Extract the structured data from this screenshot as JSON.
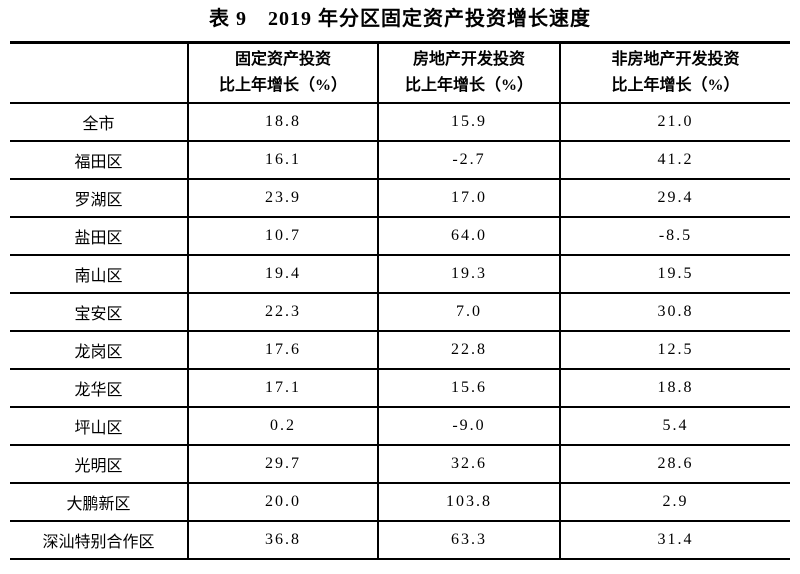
{
  "page": {
    "title": "表 9　2019 年分区固定资产投资增长速度"
  },
  "colors": {
    "background": "#ffffff",
    "text": "#000000",
    "border": "#000000"
  },
  "table": {
    "header": {
      "region": "",
      "fixed_asset_line1": "固定资产投资",
      "fixed_asset_line2": "比上年增长（%）",
      "real_estate_line1": "房地产开发投资",
      "real_estate_line2": "比上年增长（%）",
      "non_real_estate_line1": "非房地产开发投资",
      "non_real_estate_line2": "比上年增长（%）"
    },
    "rows": [
      {
        "region": "全市",
        "fixed_asset": "18.8",
        "real_estate": "15.9",
        "non_real_estate": "21.0"
      },
      {
        "region": "福田区",
        "fixed_asset": "16.1",
        "real_estate": "-2.7",
        "non_real_estate": "41.2"
      },
      {
        "region": "罗湖区",
        "fixed_asset": "23.9",
        "real_estate": "17.0",
        "non_real_estate": "29.4"
      },
      {
        "region": "盐田区",
        "fixed_asset": "10.7",
        "real_estate": "64.0",
        "non_real_estate": "-8.5"
      },
      {
        "region": "南山区",
        "fixed_asset": "19.4",
        "real_estate": "19.3",
        "non_real_estate": "19.5"
      },
      {
        "region": "宝安区",
        "fixed_asset": "22.3",
        "real_estate": "7.0",
        "non_real_estate": "30.8"
      },
      {
        "region": "龙岗区",
        "fixed_asset": "17.6",
        "real_estate": "22.8",
        "non_real_estate": "12.5"
      },
      {
        "region": "龙华区",
        "fixed_asset": "17.1",
        "real_estate": "15.6",
        "non_real_estate": "18.8"
      },
      {
        "region": "坪山区",
        "fixed_asset": "0.2",
        "real_estate": "-9.0",
        "non_real_estate": "5.4"
      },
      {
        "region": "光明区",
        "fixed_asset": "29.7",
        "real_estate": "32.6",
        "non_real_estate": "28.6"
      },
      {
        "region": "大鹏新区",
        "fixed_asset": "20.0",
        "real_estate": "103.8",
        "non_real_estate": "2.9"
      },
      {
        "region": "深汕特别合作区",
        "fixed_asset": "36.8",
        "real_estate": "63.3",
        "non_real_estate": "31.4"
      }
    ]
  }
}
